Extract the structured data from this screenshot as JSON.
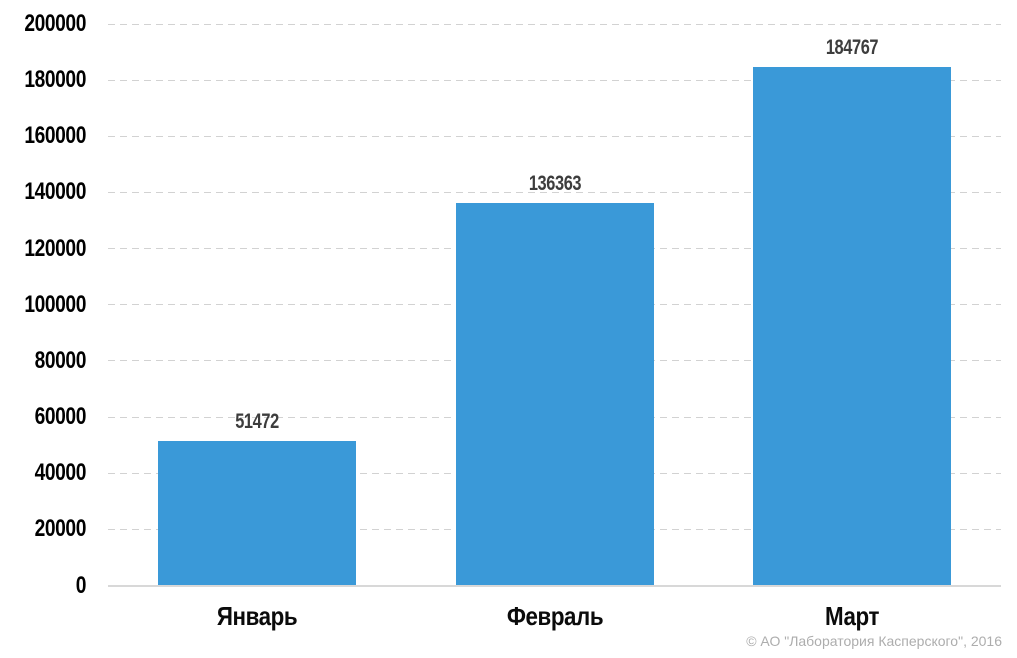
{
  "chart_data": {
    "type": "bar",
    "categories": [
      "Январь",
      "Февраль",
      "Март"
    ],
    "values": [
      51472,
      136363,
      184767
    ],
    "title": "",
    "xlabel": "",
    "ylabel": "",
    "ylim": [
      0,
      200000
    ],
    "yticks": [
      0,
      20000,
      40000,
      60000,
      80000,
      100000,
      120000,
      140000,
      160000,
      180000,
      200000
    ],
    "grid": "horizontal-dashed",
    "legend_position": "none",
    "bar_color": "#3A99D8",
    "value_labels_shown": true
  },
  "colors": {
    "background": "#FFFFFF",
    "bar": "#3A99D8",
    "gridline": "#D2D2D2",
    "axis_line": "#D8D8D8",
    "tick_label": "#000000",
    "value_label": "#3D3D3D",
    "copyright": "#ADADAD"
  },
  "footer": {
    "copyright": "© АО \"Лаборатория Касперского\", 2016"
  }
}
